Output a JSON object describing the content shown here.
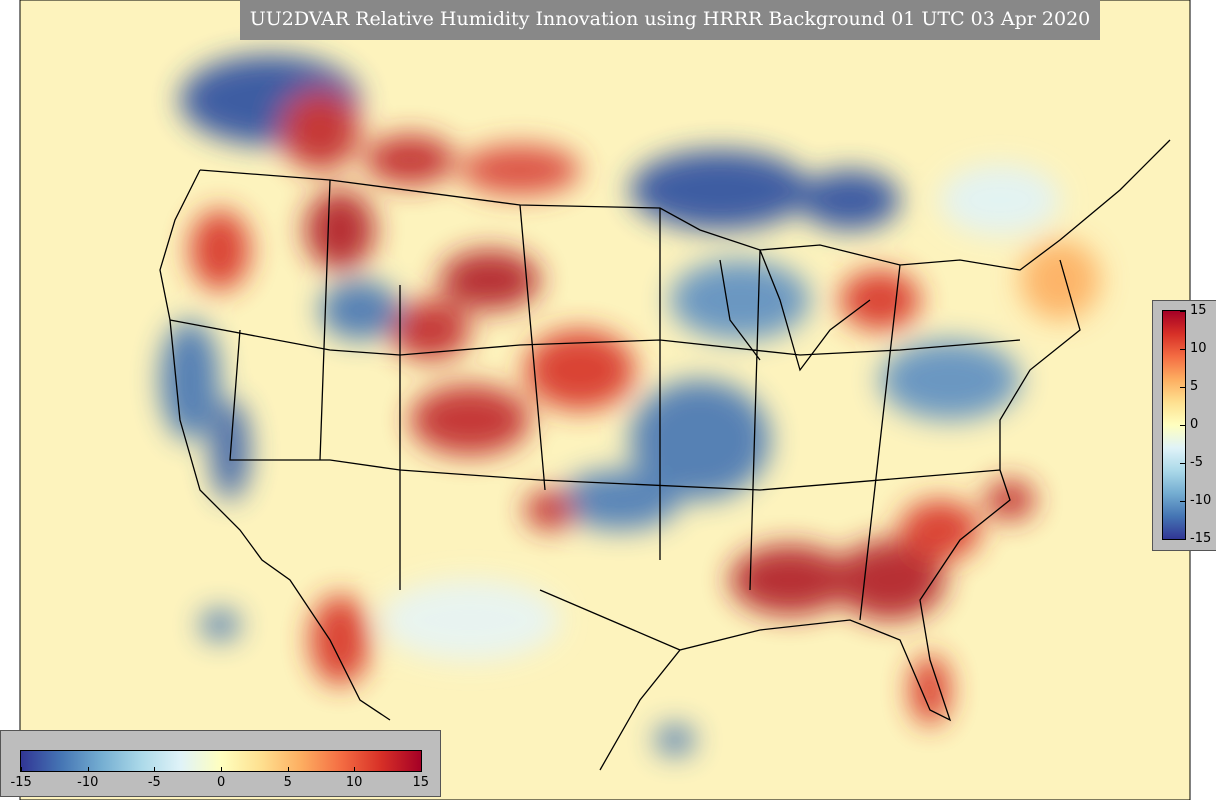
{
  "title": "UU2DVAR Relative Humidity Innovation using HRRR Background 01 UTC 03 Apr 2020",
  "colorbars": [
    {
      "orientation": "vertical",
      "lim": [
        -15,
        15
      ],
      "ticks": [
        15,
        10,
        5,
        0,
        -5,
        -10,
        -15
      ]
    },
    {
      "orientation": "horizontal",
      "lim": [
        -15,
        15
      ],
      "ticks": [
        -15,
        -10,
        -5,
        0,
        5,
        10,
        15
      ]
    }
  ]
}
